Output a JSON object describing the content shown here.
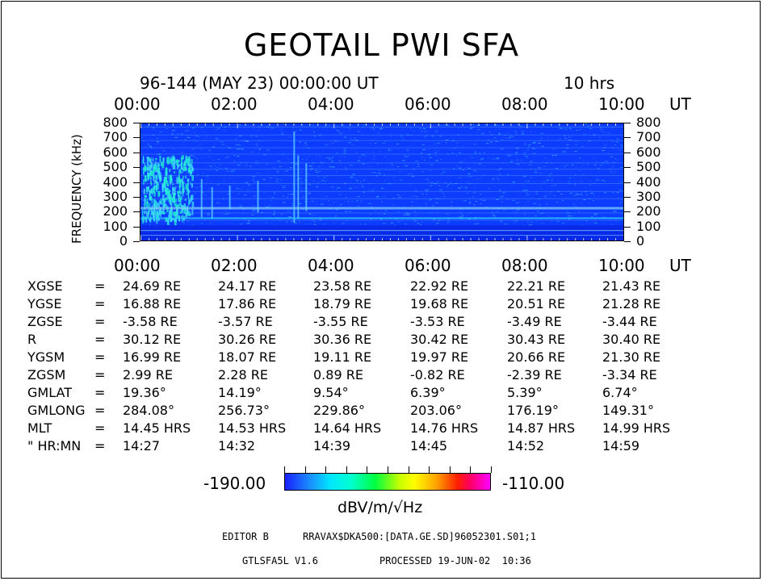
{
  "chart_data": {
    "type": "heatmap",
    "title": "GEOTAIL PWI SFA",
    "subtitle": "96-144 (MAY 23) 00:00:00 UT",
    "duration": "10 hrs",
    "x_ticks": [
      "00:00",
      "02:00",
      "04:00",
      "06:00",
      "08:00",
      "10:00"
    ],
    "x_unit": "UT",
    "ylabel": "FREQUENCY (kHz)",
    "y_ticks": [
      "800",
      "700",
      "600",
      "500",
      "400",
      "300",
      "200",
      "100",
      "0"
    ],
    "ylim": [
      0,
      800
    ],
    "xlim_hours": [
      0,
      10
    ],
    "colorbar": {
      "min": "-190.00",
      "max": "-110.00",
      "units": "dBV/m/√Hz"
    }
  },
  "orbit_table": [
    {
      "label": "XGSE",
      "values": [
        "24.69 RE",
        "24.17 RE",
        "23.58 RE",
        "22.92 RE",
        "22.21 RE",
        "21.43 RE"
      ]
    },
    {
      "label": "YGSE",
      "values": [
        "16.88 RE",
        "17.86 RE",
        "18.79 RE",
        "19.68 RE",
        "20.51 RE",
        "21.28 RE"
      ]
    },
    {
      "label": "ZGSE",
      "values": [
        "-3.58 RE",
        "-3.57 RE",
        "-3.55 RE",
        "-3.53 RE",
        "-3.49 RE",
        "-3.44 RE"
      ]
    },
    {
      "label": "R",
      "values": [
        "30.12 RE",
        "30.26 RE",
        "30.36 RE",
        "30.42 RE",
        "30.43 RE",
        "30.40 RE"
      ]
    },
    {
      "label": "YGSM",
      "values": [
        "16.99 RE",
        "18.07 RE",
        "19.11 RE",
        "19.97 RE",
        "20.66 RE",
        "21.30 RE"
      ]
    },
    {
      "label": "ZGSM",
      "values": [
        "2.99 RE",
        "2.28 RE",
        "0.89 RE",
        "-0.82 RE",
        "-2.39 RE",
        "-3.34 RE"
      ]
    },
    {
      "label": "GMLAT",
      "values": [
        "19.36°",
        "14.19°",
        "9.54°",
        "6.39°",
        "5.39°",
        "6.74°"
      ]
    },
    {
      "label": "GMLONG",
      "values": [
        "284.08°",
        "256.73°",
        "229.86°",
        "203.06°",
        "176.19°",
        "149.31°"
      ]
    },
    {
      "label": "MLT",
      "values": [
        "14.45 HRS",
        "14.53 HRS",
        "14.64 HRS",
        "14.76 HRS",
        "14.87 HRS",
        "14.99 HRS"
      ]
    },
    {
      "label": "\" HR:MN",
      "values": [
        "14:27",
        "14:32",
        "14:39",
        "14:45",
        "14:52",
        "14:59"
      ]
    }
  ],
  "footer": {
    "editor": "EDITOR B",
    "path": "RRAVAX$DKA500:[DATA.GE.SD]96052301.S01;1",
    "version": "GTLSFA5L V1.6",
    "processed": "PROCESSED 19-JUN-02  10:36"
  }
}
